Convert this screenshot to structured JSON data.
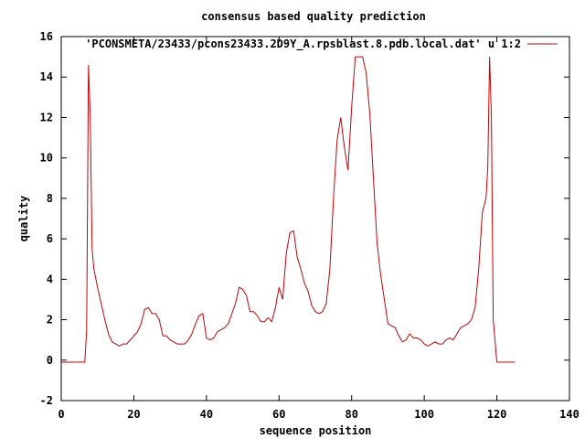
{
  "chart_data": {
    "type": "line",
    "title": "consensus based quality prediction",
    "xlabel": "sequence position",
    "ylabel": "quality",
    "xlim": [
      0,
      140
    ],
    "ylim": [
      -2,
      16
    ],
    "xticks": [
      0,
      20,
      40,
      60,
      80,
      100,
      120,
      140
    ],
    "yticks": [
      -2,
      0,
      2,
      4,
      6,
      8,
      10,
      12,
      14,
      16
    ],
    "grid": false,
    "legend_position": "top-right",
    "series": [
      {
        "name": "'PCONSMETA/23433/pcons23433.2D9Y_A.rpsblast.8.pdb.local.dat' u 1:2",
        "color": "#cc0000",
        "x": [
          0,
          6.5,
          7,
          7.5,
          8,
          8.5,
          9,
          10,
          11,
          12,
          13,
          14,
          15,
          16,
          17,
          18,
          19,
          20,
          21,
          22,
          23,
          24,
          25,
          26,
          27,
          28,
          29,
          30,
          31,
          32,
          33,
          34,
          35,
          36,
          37,
          38,
          39,
          40,
          41,
          42,
          43,
          44,
          45,
          46,
          47,
          48,
          49,
          50,
          51,
          52,
          53,
          54,
          55,
          56,
          57,
          58,
          59,
          60,
          61,
          62,
          63,
          64,
          65,
          66,
          67,
          68,
          69,
          70,
          71,
          72,
          73,
          74,
          75,
          76,
          77,
          78,
          79,
          80,
          81,
          82,
          83,
          84,
          85,
          86,
          87,
          88,
          89,
          90,
          91,
          92,
          93,
          94,
          95,
          96,
          97,
          98,
          99,
          100,
          101,
          102,
          103,
          104,
          105,
          106,
          107,
          108,
          109,
          110,
          111,
          112,
          113,
          114,
          115,
          116,
          117,
          117.5,
          118,
          118.5,
          119,
          120,
          125
        ],
        "values": [
          -0.1,
          -0.1,
          1.5,
          14.6,
          12.0,
          5.5,
          4.5,
          3.6,
          2.8,
          2.0,
          1.3,
          0.9,
          0.8,
          0.7,
          0.8,
          0.8,
          1.0,
          1.2,
          1.4,
          1.8,
          2.5,
          2.6,
          2.3,
          2.3,
          2.0,
          1.2,
          1.2,
          1.0,
          0.9,
          0.8,
          0.8,
          0.8,
          1.0,
          1.3,
          1.8,
          2.2,
          2.3,
          1.1,
          1.0,
          1.1,
          1.4,
          1.5,
          1.6,
          1.8,
          2.3,
          2.8,
          3.6,
          3.5,
          3.2,
          2.4,
          2.4,
          2.2,
          1.9,
          1.9,
          2.1,
          1.9,
          2.6,
          3.6,
          3.0,
          5.3,
          6.3,
          6.4,
          5.1,
          4.5,
          3.8,
          3.4,
          2.7,
          2.4,
          2.3,
          2.4,
          2.8,
          4.5,
          8.0,
          10.9,
          12.0,
          10.5,
          9.4,
          12.5,
          15.0,
          15.0,
          15.0,
          14.2,
          12.2,
          9.0,
          5.8,
          4.2,
          3.0,
          1.8,
          1.7,
          1.6,
          1.2,
          0.9,
          1.0,
          1.3,
          1.1,
          1.1,
          1.0,
          0.8,
          0.7,
          0.8,
          0.9,
          0.8,
          0.8,
          1.0,
          1.1,
          1.0,
          1.3,
          1.6,
          1.7,
          1.8,
          2.0,
          2.6,
          4.5,
          7.3,
          8.0,
          9.5,
          15.0,
          12.0,
          2.0,
          -0.1,
          -0.1
        ]
      }
    ]
  }
}
